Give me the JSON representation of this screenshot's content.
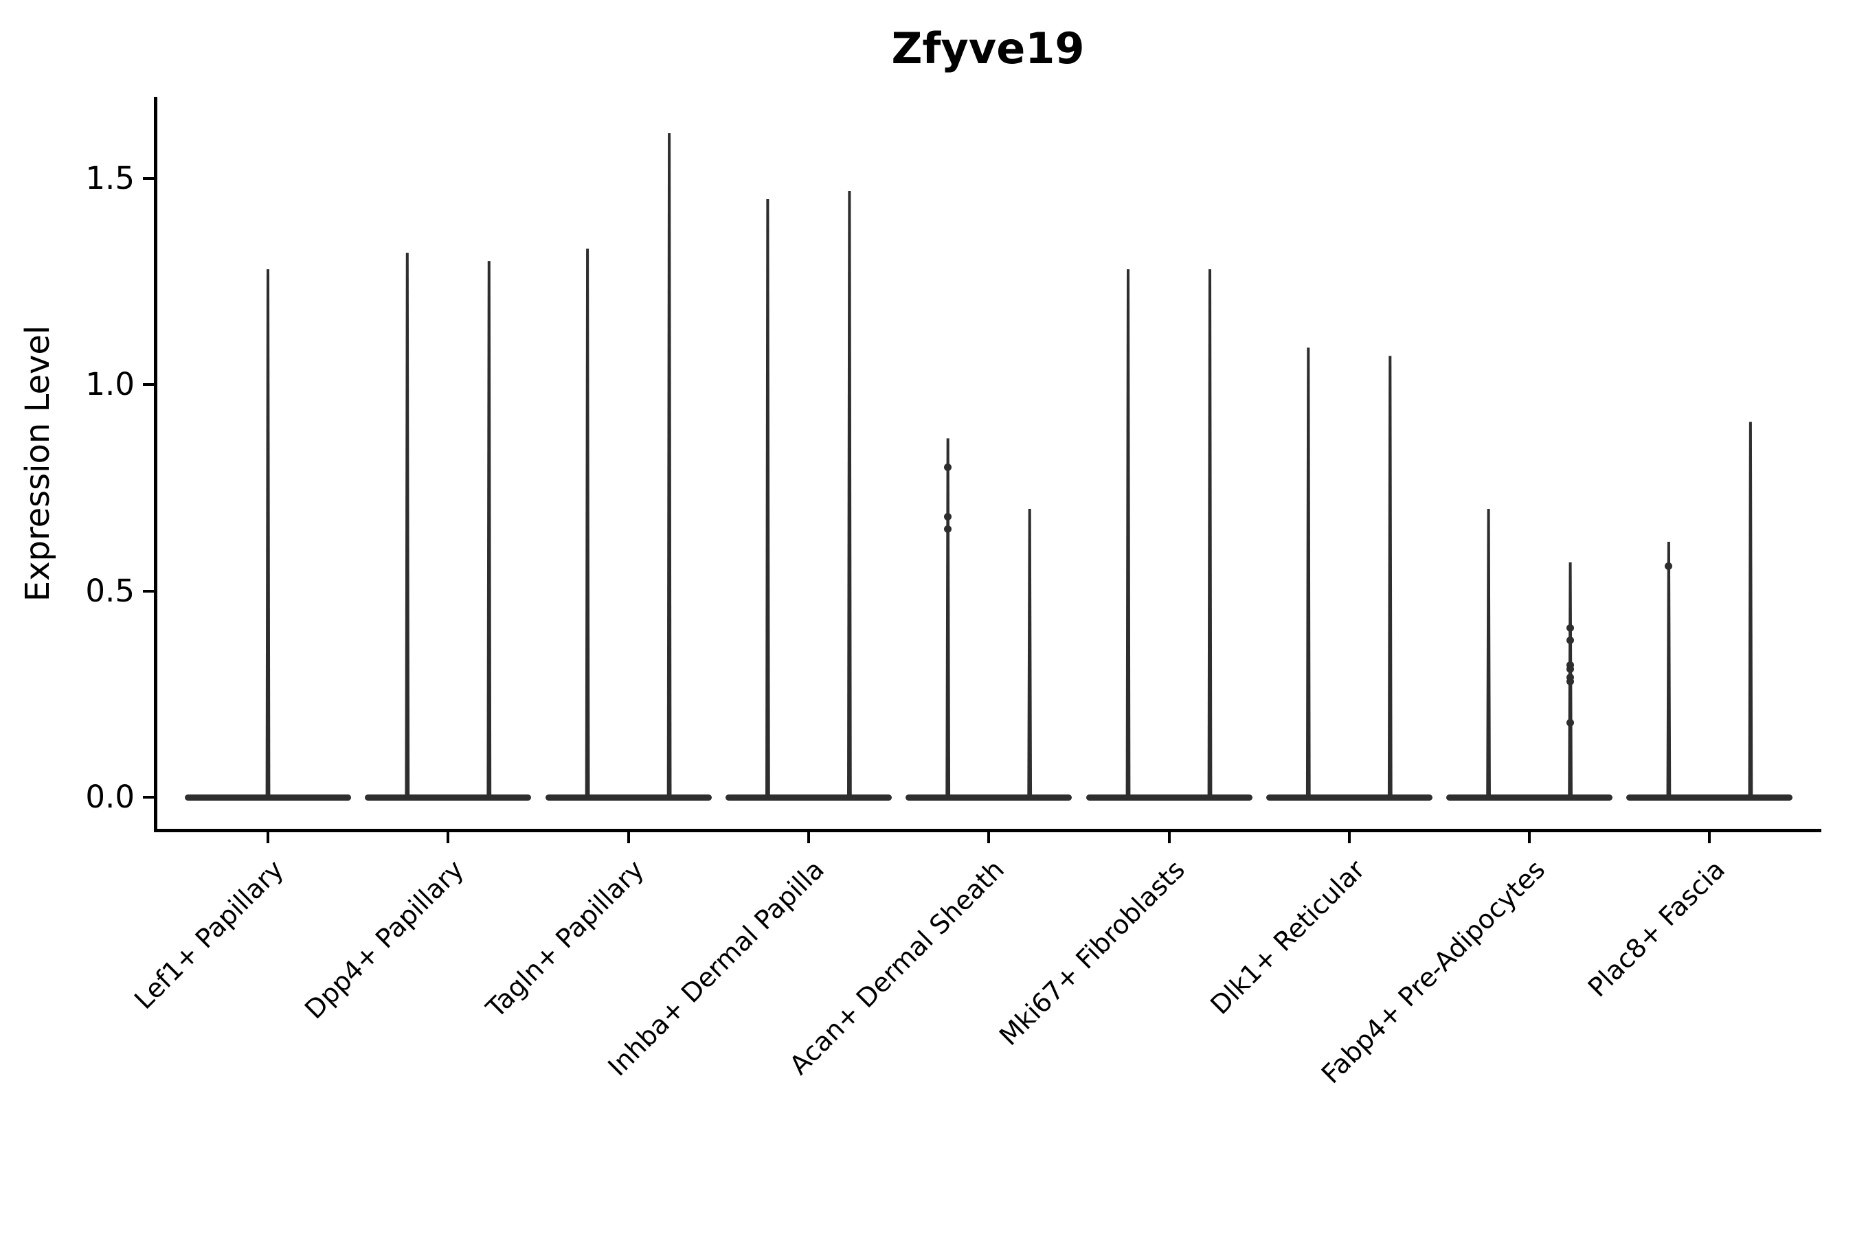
{
  "title": "Zfyve19",
  "y_axis": {
    "label": "Expression Level",
    "ticks": [
      {
        "label": "0.0",
        "value": 0.0
      },
      {
        "label": "0.5",
        "value": 0.5
      },
      {
        "label": "1.0",
        "value": 1.0
      },
      {
        "label": "1.5",
        "value": 1.5
      }
    ]
  },
  "x_axis": {
    "categories": [
      "Lef1+ Papillary",
      "Dpp4+ Papillary",
      "Tagln+ Papillary",
      "Inhba+ Dermal Papilla",
      "Acan+ Dermal Sheath",
      "Mki67+ Fibroblasts",
      "Dlk1+ Reticular",
      "Fabp4+ Pre-Adipocytes",
      "Plac8+ Fascia"
    ]
  },
  "colors": {
    "violin": "#2e2e2e",
    "axis": "#000000",
    "text": "#000000",
    "background": "#ffffff"
  },
  "chart_data": {
    "type": "violin",
    "title": "Zfyve19",
    "xlabel": "",
    "ylabel": "Expression Level",
    "ylim": [
      -0.08,
      1.7
    ],
    "y_ticks": [
      0.0,
      0.5,
      1.0,
      1.5
    ],
    "grid": false,
    "legend": "none",
    "description": "Needle-shaped violins (dense mass at 0 with thin tail up to max); most categories contain two violins side by side, Lef1+ Papillary has a single centered violin",
    "categories": [
      "Lef1+ Papillary",
      "Dpp4+ Papillary",
      "Tagln+ Papillary",
      "Inhba+ Dermal Papilla",
      "Acan+ Dermal Sheath",
      "Mki67+ Fibroblasts",
      "Dlk1+ Reticular",
      "Fabp4+ Pre-Adipocytes",
      "Plac8+ Fascia"
    ],
    "violins": [
      {
        "category": "Lef1+ Papillary",
        "position": "center",
        "max_expression": 1.28,
        "points": []
      },
      {
        "category": "Dpp4+ Papillary",
        "position": "left",
        "max_expression": 1.32,
        "points": []
      },
      {
        "category": "Dpp4+ Papillary",
        "position": "right",
        "max_expression": 1.3,
        "points": []
      },
      {
        "category": "Tagln+ Papillary",
        "position": "left",
        "max_expression": 1.33,
        "points": []
      },
      {
        "category": "Tagln+ Papillary",
        "position": "right",
        "max_expression": 1.61,
        "points": []
      },
      {
        "category": "Inhba+ Dermal Papilla",
        "position": "left",
        "max_expression": 1.45,
        "points": []
      },
      {
        "category": "Inhba+ Dermal Papilla",
        "position": "right",
        "max_expression": 1.47,
        "points": []
      },
      {
        "category": "Acan+ Dermal Sheath",
        "position": "left",
        "max_expression": 0.87,
        "points": [
          0.8,
          0.68,
          0.65
        ]
      },
      {
        "category": "Acan+ Dermal Sheath",
        "position": "right",
        "max_expression": 0.7,
        "points": []
      },
      {
        "category": "Mki67+ Fibroblasts",
        "position": "left",
        "max_expression": 1.28,
        "points": []
      },
      {
        "category": "Mki67+ Fibroblasts",
        "position": "right",
        "max_expression": 1.28,
        "points": []
      },
      {
        "category": "Dlk1+ Reticular",
        "position": "left",
        "max_expression": 1.09,
        "points": []
      },
      {
        "category": "Dlk1+ Reticular",
        "position": "right",
        "max_expression": 1.07,
        "points": []
      },
      {
        "category": "Fabp4+ Pre-Adipocytes",
        "position": "left",
        "max_expression": 0.7,
        "points": []
      },
      {
        "category": "Fabp4+ Pre-Adipocytes",
        "position": "right",
        "max_expression": 0.57,
        "points": [
          0.41,
          0.38,
          0.32,
          0.31,
          0.29,
          0.28,
          0.18
        ]
      },
      {
        "category": "Plac8+ Fascia",
        "position": "left",
        "max_expression": 0.62,
        "points": [
          0.56
        ]
      },
      {
        "category": "Plac8+ Fascia",
        "position": "right",
        "max_expression": 0.91,
        "points": []
      }
    ]
  }
}
